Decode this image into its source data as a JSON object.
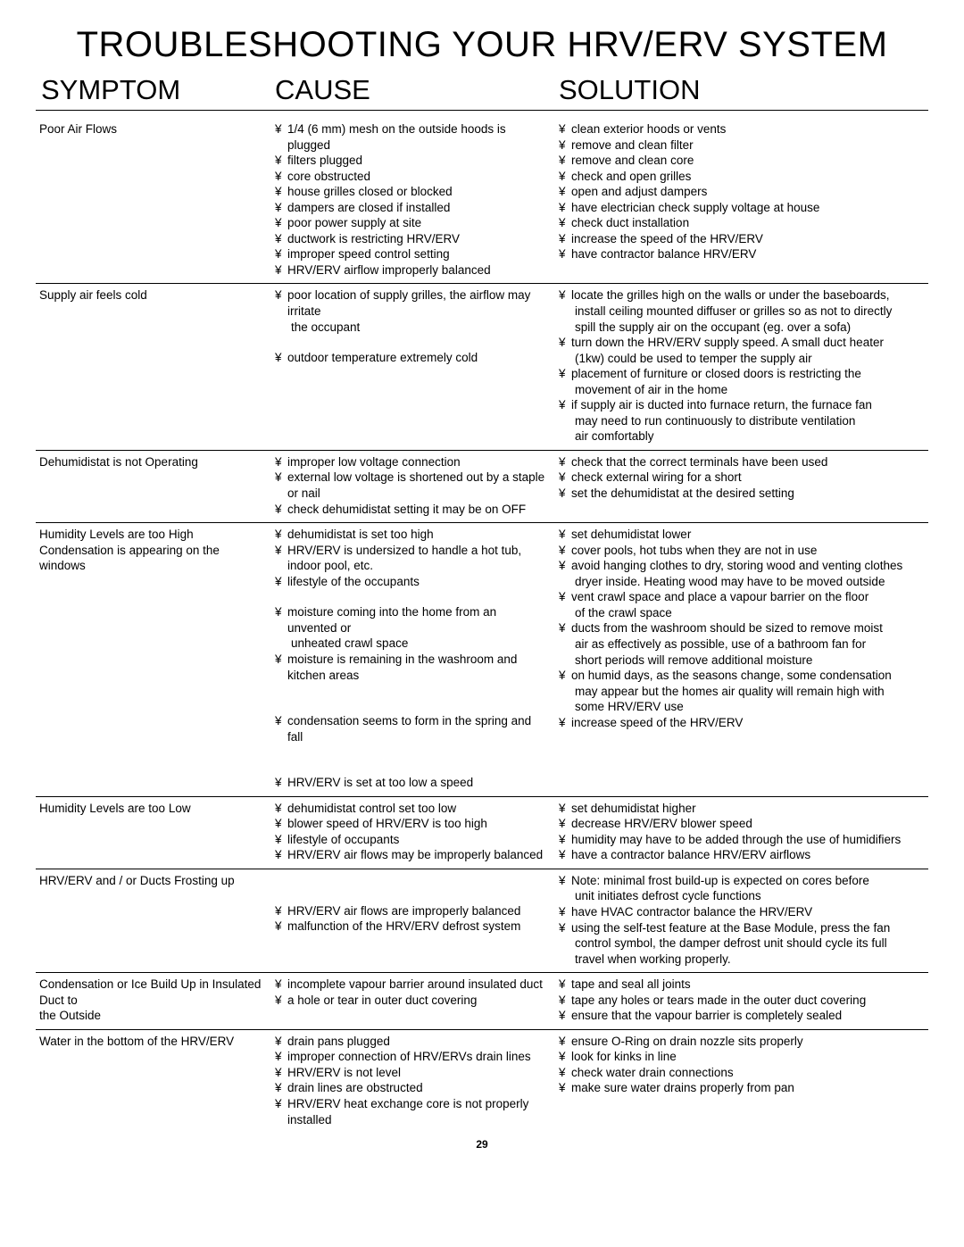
{
  "title": "TROUBLESHOOTING YOUR HRV/ERV SYSTEM",
  "headings": {
    "symptom": "SYMPTOM",
    "cause": "CAUSE",
    "solution": "SOLUTION"
  },
  "bullet": "¥",
  "page_number": "29",
  "sections": [
    {
      "symptom": [
        "Poor Air Flows"
      ],
      "cause": [
        {
          "b": true,
          "t": "1/4  (6 mm) mesh on the outside hoods is plugged"
        },
        {
          "b": true,
          "t": "filters plugged"
        },
        {
          "b": true,
          "t": "core obstructed"
        },
        {
          "b": true,
          "t": "house grilles closed or blocked"
        },
        {
          "b": true,
          "t": "dampers are closed if installed"
        },
        {
          "b": true,
          "t": "poor power supply at site"
        },
        {
          "b": true,
          "t": "ductwork is restricting HRV/ERV"
        },
        {
          "b": true,
          "t": "improper speed control setting"
        },
        {
          "b": true,
          "t": "HRV/ERV airflow improperly balanced"
        }
      ],
      "solution": [
        {
          "b": true,
          "t": "clean exterior hoods or vents"
        },
        {
          "b": true,
          "t": "remove and clean filter"
        },
        {
          "b": true,
          "t": "remove and clean core"
        },
        {
          "b": true,
          "t": "check and open grilles"
        },
        {
          "b": true,
          "t": "open and adjust dampers"
        },
        {
          "b": true,
          "t": "have electrician check supply voltage at house"
        },
        {
          "b": true,
          "t": "check duct installation"
        },
        {
          "b": true,
          "t": "increase the speed of the HRV/ERV"
        },
        {
          "b": true,
          "t": "have contractor balance HRV/ERV"
        }
      ]
    },
    {
      "symptom": [
        "Supply air feels cold"
      ],
      "cause": [
        {
          "b": true,
          "t": "poor location of supply grilles, the airflow may irritate"
        },
        {
          "b": false,
          "t": "the occupant"
        },
        {
          "spacer": true
        },
        {
          "b": true,
          "t": "outdoor temperature extremely cold"
        }
      ],
      "solution": [
        {
          "b": true,
          "t": "locate the grilles high on the walls or under the baseboards,"
        },
        {
          "b": false,
          "t": "install ceiling mounted diffuser or grilles so as not to directly"
        },
        {
          "b": false,
          "t": "spill the supply air on the occupant (eg. over a sofa)"
        },
        {
          "b": true,
          "t": "turn down the HRV/ERV supply speed. A small duct heater"
        },
        {
          "b": false,
          "t": "(1kw) could be used to temper the supply air"
        },
        {
          "b": true,
          "t": "placement of furniture or closed doors is restricting the"
        },
        {
          "b": false,
          "t": "movement of air in the home"
        },
        {
          "b": true,
          "t": "if supply air is ducted into furnace return, the furnace fan"
        },
        {
          "b": false,
          "t": "may need to run continuously to distribute ventilation"
        },
        {
          "b": false,
          "t": "air comfortably"
        }
      ]
    },
    {
      "symptom": [
        "Dehumidistat is not Operating"
      ],
      "cause": [
        {
          "b": true,
          "t": "improper low voltage connection"
        },
        {
          "b": true,
          "t": "external low voltage is shortened out by a staple or nail"
        },
        {
          "b": true,
          "t": "check dehumidistat setting it may be on OFF"
        }
      ],
      "solution": [
        {
          "b": true,
          "t": "check that the correct terminals have been used"
        },
        {
          "b": true,
          "t": "check external wiring for a short"
        },
        {
          "b": true,
          "t": "set the dehumidistat at the desired setting"
        }
      ]
    },
    {
      "symptom": [
        "Humidity Levels are too High",
        "Condensation is appearing on the windows"
      ],
      "cause": [
        {
          "b": true,
          "t": "dehumidistat is set too high"
        },
        {
          "b": true,
          "t": "HRV/ERV is undersized to handle a hot tub, indoor pool, etc."
        },
        {
          "b": true,
          "t": "lifestyle of the occupants"
        },
        {
          "spacer": true
        },
        {
          "b": true,
          "t": "moisture coming into the home from an unvented or"
        },
        {
          "b": false,
          "t": "unheated crawl space"
        },
        {
          "b": true,
          "t": "moisture is remaining in the washroom and kitchen areas"
        },
        {
          "spacer": true
        },
        {
          "spacer": true
        },
        {
          "b": true,
          "t": "condensation seems to form in the spring and fall"
        },
        {
          "spacer": true
        },
        {
          "spacer": true
        },
        {
          "b": true,
          "t": "HRV/ERV is set at too low a speed"
        }
      ],
      "solution": [
        {
          "b": true,
          "t": "set dehumidistat lower"
        },
        {
          "b": true,
          "t": "cover pools, hot tubs when they are not in use"
        },
        {
          "b": true,
          "t": "avoid hanging clothes to dry, storing wood and venting clothes"
        },
        {
          "b": false,
          "t": "dryer inside. Heating wood may have to be moved outside"
        },
        {
          "b": true,
          "t": "vent crawl space and place a vapour barrier on the floor"
        },
        {
          "b": false,
          "t": "of the crawl space"
        },
        {
          "b": true,
          "t": "ducts from the washroom should be sized to remove moist"
        },
        {
          "b": false,
          "t": "air as effectively as possible, use of a bathroom fan for"
        },
        {
          "b": false,
          "t": "short  periods will remove additional moisture"
        },
        {
          "b": true,
          "t": "on humid days, as the seasons change, some condensation"
        },
        {
          "b": false,
          "t": "may appear but the homes air quality will remain high with"
        },
        {
          "b": false,
          "t": "some HRV/ERV use"
        },
        {
          "b": true,
          "t": "increase speed of the HRV/ERV"
        }
      ]
    },
    {
      "symptom": [
        "Humidity Levels are too Low"
      ],
      "cause": [
        {
          "b": true,
          "t": "dehumidistat control set too low"
        },
        {
          "b": true,
          "t": "blower speed of HRV/ERV is too high"
        },
        {
          "b": true,
          "t": "lifestyle of occupants"
        },
        {
          "b": true,
          "t": "HRV/ERV air flows may be improperly balanced"
        }
      ],
      "solution": [
        {
          "b": true,
          "t": "set dehumidistat higher"
        },
        {
          "b": true,
          "t": "decrease HRV/ERV blower speed"
        },
        {
          "b": true,
          "t": "humidity may have to be added through the use of humidifiers"
        },
        {
          "b": true,
          "t": "have a contractor balance HRV/ERV airflows"
        }
      ]
    },
    {
      "symptom": [
        "HRV/ERV and / or Ducts Frosting up"
      ],
      "cause": [
        {
          "spacer": true
        },
        {
          "spacer": true
        },
        {
          "b": true,
          "t": "HRV/ERV air flows are improperly balanced"
        },
        {
          "b": true,
          "t": "malfunction of the HRV/ERV defrost system"
        }
      ],
      "solution": [
        {
          "b": true,
          "t": "Note: minimal frost build-up is expected on cores before"
        },
        {
          "b": false,
          "t": "unit initiates defrost cycle functions"
        },
        {
          "b": true,
          "t": "have HVAC contractor balance the HRV/ERV"
        },
        {
          "b": true,
          "t": "using the self-test feature at the Base Module, press the fan"
        },
        {
          "b": false,
          "t": "control symbol, the damper defrost unit should cycle its full"
        },
        {
          "b": false,
          "t": "travel when working properly."
        }
      ]
    },
    {
      "symptom": [
        "Condensation or Ice Build Up in Insulated Duct to",
        "the Outside"
      ],
      "cause": [
        {
          "b": true,
          "t": "incomplete vapour barrier around insulated duct"
        },
        {
          "b": true,
          "t": "a hole or tear in outer duct covering"
        }
      ],
      "solution": [
        {
          "b": true,
          "t": "tape and seal all joints"
        },
        {
          "b": true,
          "t": "tape any holes or tears made in the outer duct covering"
        },
        {
          "b": true,
          "t": "ensure that the vapour barrier is completely sealed"
        }
      ]
    },
    {
      "symptom": [
        "Water in the bottom of the HRV/ERV"
      ],
      "cause": [
        {
          "b": true,
          "t": "drain pans plugged"
        },
        {
          "b": true,
          "t": "improper connection of HRV/ERVs drain lines"
        },
        {
          "b": true,
          "t": "HRV/ERV is not level"
        },
        {
          "b": true,
          "t": "drain lines are obstructed"
        },
        {
          "b": true,
          "t": "HRV/ERV heat exchange core is not properly installed"
        }
      ],
      "solution": [
        {
          "b": true,
          "t": "ensure O-Ring on drain nozzle sits properly"
        },
        {
          "b": true,
          "t": "look for kinks in line"
        },
        {
          "b": true,
          "t": "check water drain connections"
        },
        {
          "b": true,
          "t": "make sure water drains properly from pan"
        }
      ]
    }
  ]
}
